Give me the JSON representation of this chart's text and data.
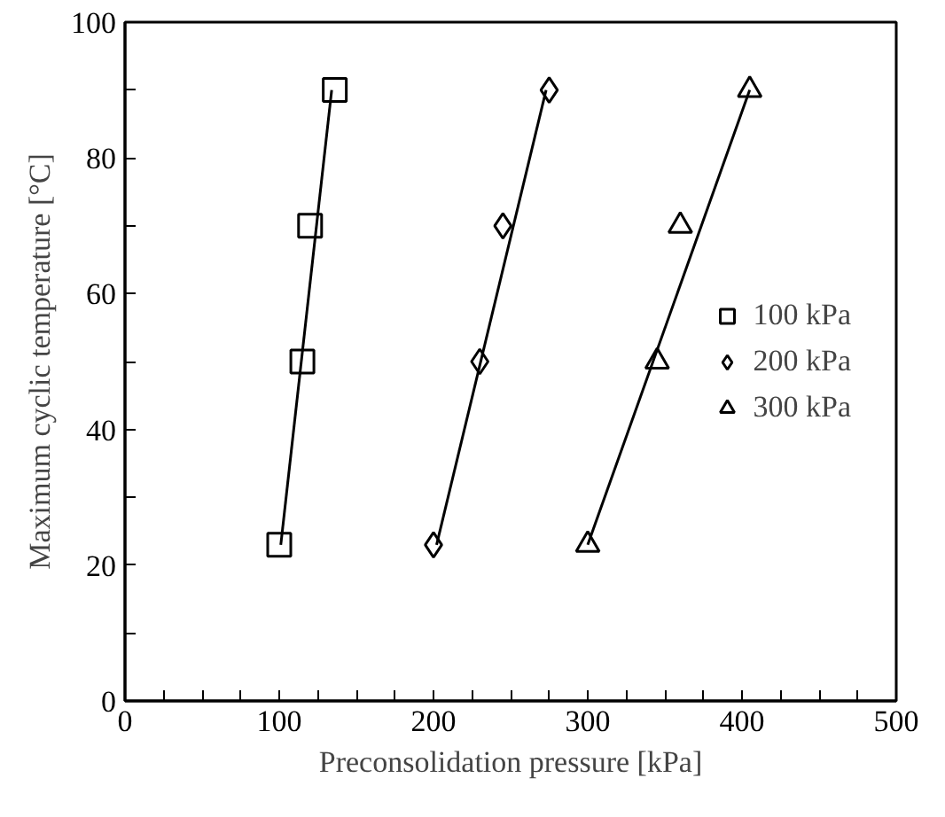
{
  "chart_data": {
    "type": "scatter",
    "xlabel": "Preconsolidation pressure [kPa]",
    "ylabel": "Maximum cyclic temperature [°C]",
    "xlim": [
      0,
      500
    ],
    "ylim": [
      0,
      100
    ],
    "xticks": [
      0,
      {
        "value": 25,
        "label": null
      },
      {
        "value": 50,
        "label": null
      },
      {
        "value": 75,
        "label": null
      },
      100,
      {
        "value": 125,
        "label": null
      },
      {
        "value": 150,
        "label": null
      },
      {
        "value": 175,
        "label": null
      },
      200,
      {
        "value": 225,
        "label": null
      },
      {
        "value": 250,
        "label": null
      },
      {
        "value": 275,
        "label": null
      },
      300,
      {
        "value": 325,
        "label": null
      },
      {
        "value": 350,
        "label": null
      },
      {
        "value": 375,
        "label": null
      },
      400,
      {
        "value": 425,
        "label": null
      },
      {
        "value": 450,
        "label": null
      },
      {
        "value": 475,
        "label": null
      },
      500
    ],
    "yticks": [
      0,
      {
        "value": 10,
        "label": null
      },
      20,
      {
        "value": 30,
        "label": null
      },
      40,
      {
        "value": 50,
        "label": null
      },
      60,
      {
        "value": 70,
        "label": null
      },
      80,
      {
        "value": 90,
        "label": null
      },
      100
    ],
    "grid": false,
    "legend": "right",
    "series": [
      {
        "name": "100 kPa",
        "color": "#000000",
        "marker": "square",
        "x": [
          100,
          115,
          120,
          136
        ],
        "values": [
          23,
          50,
          70,
          90
        ]
      },
      {
        "name": "200 kPa",
        "color": "#000000",
        "marker": "diamond",
        "x": [
          200,
          230,
          245,
          275
        ],
        "values": [
          23,
          50,
          70,
          90
        ]
      },
      {
        "name": "300 kPa",
        "color": "#000000",
        "marker": "triangle",
        "x": [
          300,
          345,
          360,
          405
        ],
        "values": [
          23,
          50,
          70,
          90
        ]
      },
      {
        "type": "line",
        "color": "#000000",
        "marker": "none",
        "line_style": "solid",
        "x": [
          101,
          134
        ],
        "values": [
          23,
          90
        ]
      },
      {
        "type": "line",
        "color": "#000000",
        "marker": "none",
        "line_style": "solid",
        "x": [
          202,
          273
        ],
        "values": [
          23,
          90
        ]
      },
      {
        "type": "line",
        "color": "#000000",
        "marker": "none",
        "line_style": "solid",
        "x": [
          300,
          405
        ],
        "values": [
          23,
          90
        ]
      }
    ]
  }
}
